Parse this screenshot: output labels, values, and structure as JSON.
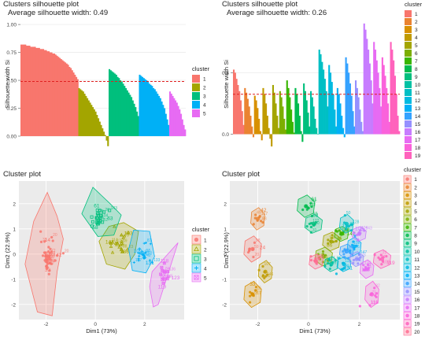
{
  "chart_data": [
    {
      "type": "bar",
      "subtype": "silhouette",
      "title": "Clusters silhouette plot",
      "subtitle": "Average silhouette width: 0.49",
      "ylabel": "Silhouette width Si",
      "ylim": [
        -0.12,
        1.05
      ],
      "yticks": [
        "0.00",
        "0.25",
        "0.50",
        "0.75",
        "1.00"
      ],
      "average": 0.49,
      "legend_title": "cluster",
      "legend_position": "right",
      "clusters": [
        {
          "name": "1",
          "color": "#F8766D",
          "values": [
            0.82,
            0.82,
            0.82,
            0.82,
            0.81,
            0.81,
            0.81,
            0.8,
            0.8,
            0.8,
            0.8,
            0.79,
            0.79,
            0.79,
            0.78,
            0.78,
            0.78,
            0.77,
            0.77,
            0.76,
            0.76,
            0.75,
            0.75,
            0.74,
            0.74,
            0.73,
            0.72,
            0.71,
            0.7,
            0.69,
            0.68,
            0.67,
            0.66,
            0.65,
            0.64,
            0.62,
            0.61,
            0.59,
            0.57,
            0.55,
            0.53,
            0.51
          ]
        },
        {
          "name": "2",
          "color": "#A3A500",
          "values": [
            0.43,
            0.42,
            0.41,
            0.4,
            0.38,
            0.36,
            0.34,
            0.32,
            0.3,
            0.28,
            0.26,
            0.24,
            0.22,
            0.19,
            0.16,
            0.13,
            0.1,
            0.07,
            0.04,
            0.01,
            -0.04,
            -0.09
          ]
        },
        {
          "name": "3",
          "color": "#00BF7D",
          "values": [
            0.6,
            0.59,
            0.58,
            0.57,
            0.56,
            0.55,
            0.53,
            0.52,
            0.5,
            0.49,
            0.47,
            0.45,
            0.43,
            0.41,
            0.39,
            0.37,
            0.35,
            0.32,
            0.29,
            0.26,
            0.22,
            0.18
          ]
        },
        {
          "name": "4",
          "color": "#00B0F6",
          "values": [
            0.55,
            0.54,
            0.53,
            0.52,
            0.51,
            0.5,
            0.49,
            0.47,
            0.46,
            0.45,
            0.43,
            0.42,
            0.4,
            0.38,
            0.36,
            0.34,
            0.31,
            0.28,
            0.25,
            0.2,
            0.15,
            0.1
          ]
        },
        {
          "name": "5",
          "color": "#E76BF3",
          "values": [
            0.4,
            0.38,
            0.36,
            0.34,
            0.32,
            0.3,
            0.27,
            0.24,
            0.2,
            0.15,
            0.1,
            0.06
          ]
        }
      ]
    },
    {
      "type": "bar",
      "subtype": "silhouette",
      "title": "Clusters silhouette plot",
      "subtitle": "Average silhouette width: 0.26",
      "ylabel": "Silhouette width Si",
      "ylim": [
        -0.1,
        0.75
      ],
      "yticks": [
        "0.0",
        "0.4"
      ],
      "average": 0.26,
      "legend_title": "cluster",
      "legend_position": "right",
      "clusters": [
        {
          "name": "1",
          "color": "#F8766D",
          "values": [
            0.42,
            0.4,
            0.36,
            0.32,
            0.28,
            0.22,
            0.15,
            0.06
          ]
        },
        {
          "name": "2",
          "color": "#EA8331",
          "values": [
            0.3,
            0.27,
            0.23,
            0.18,
            0.12,
            0.05,
            -0.02
          ]
        },
        {
          "name": "3",
          "color": "#D89000",
          "values": [
            0.25,
            0.22,
            0.17,
            0.1,
            0.02,
            -0.04
          ]
        },
        {
          "name": "4",
          "color": "#C09B00",
          "values": [
            0.3,
            0.26,
            0.2,
            0.12,
            0.04,
            -0.03,
            -0.08
          ]
        },
        {
          "name": "5",
          "color": "#A3A500",
          "values": [
            0.32,
            0.27,
            0.2,
            0.12,
            0.04
          ]
        },
        {
          "name": "6",
          "color": "#7CAE00",
          "values": [
            0.28,
            0.24,
            0.18,
            0.1,
            0.03
          ]
        },
        {
          "name": "7",
          "color": "#39B600",
          "values": [
            0.35,
            0.3,
            0.24,
            0.16,
            0.08,
            0.01
          ]
        },
        {
          "name": "8",
          "color": "#00BB4E",
          "values": [
            0.3,
            0.26,
            0.2,
            0.12,
            0.02,
            -0.05
          ]
        },
        {
          "name": "9",
          "color": "#00BF7D",
          "values": [
            0.33,
            0.28,
            0.22,
            0.14,
            0.05
          ]
        },
        {
          "name": "10",
          "color": "#00C1A3",
          "values": [
            0.28,
            0.24,
            0.18,
            0.1,
            0.04,
            0.0
          ]
        },
        {
          "name": "11",
          "color": "#00BFC4",
          "values": [
            0.55,
            0.52,
            0.47,
            0.42,
            0.36,
            0.28,
            0.18
          ]
        },
        {
          "name": "12",
          "color": "#00BAE0",
          "values": [
            0.45,
            0.4,
            0.34,
            0.26,
            0.16,
            0.05
          ]
        },
        {
          "name": "13",
          "color": "#00B0F6",
          "values": [
            0.3,
            0.26,
            0.2,
            0.12,
            0.04,
            -0.02
          ]
        },
        {
          "name": "14",
          "color": "#35A2FF",
          "values": [
            0.5,
            0.46,
            0.4,
            0.33,
            0.25,
            0.15,
            0.05
          ]
        },
        {
          "name": "15",
          "color": "#9590FF",
          "values": [
            0.35,
            0.3,
            0.24,
            0.16,
            0.08,
            0.02
          ]
        },
        {
          "name": "16",
          "color": "#C77CFF",
          "values": [
            0.72,
            0.68,
            0.62,
            0.55,
            0.46,
            0.35,
            0.2
          ]
        },
        {
          "name": "17",
          "color": "#E76BF3",
          "values": [
            0.6,
            0.55,
            0.48,
            0.4,
            0.3,
            0.18
          ]
        },
        {
          "name": "18",
          "color": "#FA62DB",
          "values": [
            0.5,
            0.45,
            0.38,
            0.3,
            0.2,
            0.08
          ]
        },
        {
          "name": "19",
          "color": "#FF62BC",
          "values": [
            0.6,
            0.55,
            0.48,
            0.38,
            0.26,
            0.12,
            0.02
          ]
        }
      ]
    },
    {
      "type": "scatter",
      "subtype": "cluster",
      "title": "Cluster plot",
      "xlabel": "Dim1 (73%)",
      "ylabel": "Dim2 (22.9%)",
      "xlim": [
        -3.1,
        3.6
      ],
      "ylim": [
        -2.6,
        2.9
      ],
      "xticks": [
        -2,
        0,
        2
      ],
      "yticks": [
        -2,
        -1,
        0,
        1,
        2
      ],
      "legend_title": "cluster",
      "legend_position": "right",
      "clusters": [
        {
          "name": "1",
          "color": "#F8766D",
          "shape": "circle",
          "n": 42,
          "center": [
            -1.9,
            -0.1
          ],
          "spread": [
            0.28,
            0.62
          ],
          "labels": [
            "42",
            "14",
            "33"
          ],
          "hull": [
            [
              -1.95,
              2.45
            ],
            [
              -2.5,
              1.3
            ],
            [
              -2.85,
              -0.4
            ],
            [
              -2.35,
              -2.3
            ],
            [
              -1.75,
              -2.45
            ],
            [
              -1.55,
              -0.7
            ],
            [
              -1.3,
              0.6
            ],
            [
              -1.55,
              1.5
            ]
          ]
        },
        {
          "name": "2",
          "color": "#A3A500",
          "shape": "triangle",
          "n": 22,
          "center": [
            0.9,
            0.4
          ],
          "spread": [
            0.45,
            0.38
          ],
          "labels": [
            "143",
            "147",
            "86"
          ],
          "hull": [
            [
              0.55,
              1.1
            ],
            [
              1.15,
              1.25
            ],
            [
              1.75,
              0.9
            ],
            [
              1.6,
              0.0
            ],
            [
              1.2,
              -0.6
            ],
            [
              0.45,
              -0.4
            ],
            [
              0.15,
              0.5
            ]
          ]
        },
        {
          "name": "3",
          "color": "#00BF7D",
          "shape": "square",
          "n": 22,
          "center": [
            0.1,
            1.4
          ],
          "spread": [
            0.35,
            0.45
          ],
          "labels": [
            "61",
            "58",
            "63"
          ],
          "hull": [
            [
              -0.1,
              2.65
            ],
            [
              -0.55,
              1.6
            ],
            [
              0.1,
              0.7
            ],
            [
              0.75,
              0.75
            ],
            [
              1.05,
              1.55
            ],
            [
              0.6,
              2.0
            ]
          ]
        },
        {
          "name": "4",
          "color": "#00B0F6",
          "shape": "plus",
          "n": 22,
          "center": [
            1.9,
            0.0
          ],
          "spread": [
            0.32,
            0.4
          ],
          "labels": [
            "109",
            "131"
          ],
          "hull": [
            [
              1.55,
              0.95
            ],
            [
              2.2,
              0.9
            ],
            [
              2.4,
              -0.1
            ],
            [
              2.05,
              -0.75
            ],
            [
              1.5,
              -0.65
            ],
            [
              1.35,
              0.2
            ]
          ]
        },
        {
          "name": "5",
          "color": "#E76BF3",
          "shape": "square-x",
          "n": 12,
          "center": [
            2.75,
            -0.9
          ],
          "spread": [
            0.3,
            0.55
          ],
          "labels": [
            "119",
            "123",
            "118"
          ],
          "hull": [
            [
              3.35,
              0.45
            ],
            [
              2.3,
              -0.7
            ],
            [
              2.2,
              -1.3
            ],
            [
              2.35,
              -2.1
            ],
            [
              2.55,
              -2.0
            ]
          ]
        }
      ]
    },
    {
      "type": "scatter",
      "subtype": "cluster",
      "title": "Cluster plot",
      "xlabel": "Dim1 (73%)",
      "ylabel": "Dim2 (22.9%)",
      "xlim": [
        -3.1,
        3.6
      ],
      "ylim": [
        -2.6,
        2.9
      ],
      "xticks": [
        -2,
        0,
        2
      ],
      "yticks": [
        -2,
        -1,
        0,
        1,
        2
      ],
      "legend_title": "cluster",
      "legend_position": "right",
      "clusters": [
        {
          "name": "1",
          "color": "#F8766D",
          "center": [
            -2.2,
            0.2
          ],
          "spread": [
            0.25,
            0.35
          ],
          "labels": [
            "24"
          ]
        },
        {
          "name": "2",
          "color": "#EA8331",
          "center": [
            -2.0,
            1.4
          ],
          "spread": [
            0.2,
            0.3
          ],
          "labels": [
            "42"
          ]
        },
        {
          "name": "3",
          "color": "#D89000",
          "center": [
            -2.2,
            -1.6
          ],
          "spread": [
            0.25,
            0.35
          ],
          "labels": [
            "33"
          ]
        },
        {
          "name": "4",
          "color": "#C09B00",
          "center": [
            -1.7,
            -0.7
          ],
          "spread": [
            0.2,
            0.3
          ],
          "labels": []
        },
        {
          "name": "5",
          "color": "#A3A500",
          "center": [
            0.9,
            0.5
          ],
          "spread": [
            0.25,
            0.25
          ],
          "labels": [
            "86"
          ]
        },
        {
          "name": "6",
          "color": "#7CAE00",
          "center": [
            0.6,
            -0.1
          ],
          "spread": [
            0.25,
            0.25
          ],
          "labels": []
        },
        {
          "name": "7",
          "color": "#39B600",
          "center": [
            1.3,
            0.8
          ],
          "spread": [
            0.2,
            0.2
          ],
          "labels": [
            "147"
          ]
        },
        {
          "name": "8",
          "color": "#00BB4E",
          "center": [
            -0.1,
            1.9
          ],
          "spread": [
            0.25,
            0.3
          ],
          "labels": [
            "61"
          ]
        },
        {
          "name": "9",
          "color": "#00BF7D",
          "center": [
            0.2,
            1.2
          ],
          "spread": [
            0.25,
            0.25
          ],
          "labels": [
            "63"
          ]
        },
        {
          "name": "10",
          "color": "#00C1A3",
          "center": [
            0.9,
            -0.4
          ],
          "spread": [
            0.2,
            0.2
          ],
          "labels": []
        },
        {
          "name": "11",
          "color": "#00BFC4",
          "center": [
            1.5,
            1.2
          ],
          "spread": [
            0.2,
            0.25
          ],
          "labels": [
            "120"
          ]
        },
        {
          "name": "12",
          "color": "#00BAE0",
          "center": [
            1.4,
            -0.4
          ],
          "spread": [
            0.2,
            0.2
          ],
          "labels": [
            "131"
          ]
        },
        {
          "name": "13",
          "color": "#00B0F6",
          "center": [
            1.8,
            0.3
          ],
          "spread": [
            0.2,
            0.25
          ],
          "labels": []
        },
        {
          "name": "14",
          "color": "#35A2FF",
          "center": [
            1.5,
            0.1
          ],
          "spread": [
            0.2,
            0.2
          ],
          "labels": []
        },
        {
          "name": "15",
          "color": "#9590FF",
          "center": [
            1.9,
            -0.2
          ],
          "spread": [
            0.2,
            0.2
          ],
          "labels": []
        },
        {
          "name": "16",
          "color": "#C77CFF",
          "center": [
            2.0,
            0.8
          ],
          "spread": [
            0.2,
            0.2
          ],
          "labels": [
            "109"
          ]
        },
        {
          "name": "17",
          "color": "#E76BF3",
          "center": [
            2.3,
            -0.6
          ],
          "spread": [
            0.2,
            0.25
          ],
          "labels": [
            "123"
          ]
        },
        {
          "name": "18",
          "color": "#FA62DB",
          "center": [
            2.5,
            -1.6
          ],
          "spread": [
            0.2,
            0.35
          ],
          "labels": [
            "118"
          ]
        },
        {
          "name": "19",
          "color": "#FF62BC",
          "center": [
            2.9,
            -0.2
          ],
          "spread": [
            0.25,
            0.25
          ],
          "labels": [
            "119"
          ]
        },
        {
          "name": "20",
          "color": "#FF6C91",
          "center": [
            0.3,
            -0.3
          ],
          "spread": [
            0.2,
            0.2
          ],
          "labels": []
        }
      ]
    }
  ]
}
